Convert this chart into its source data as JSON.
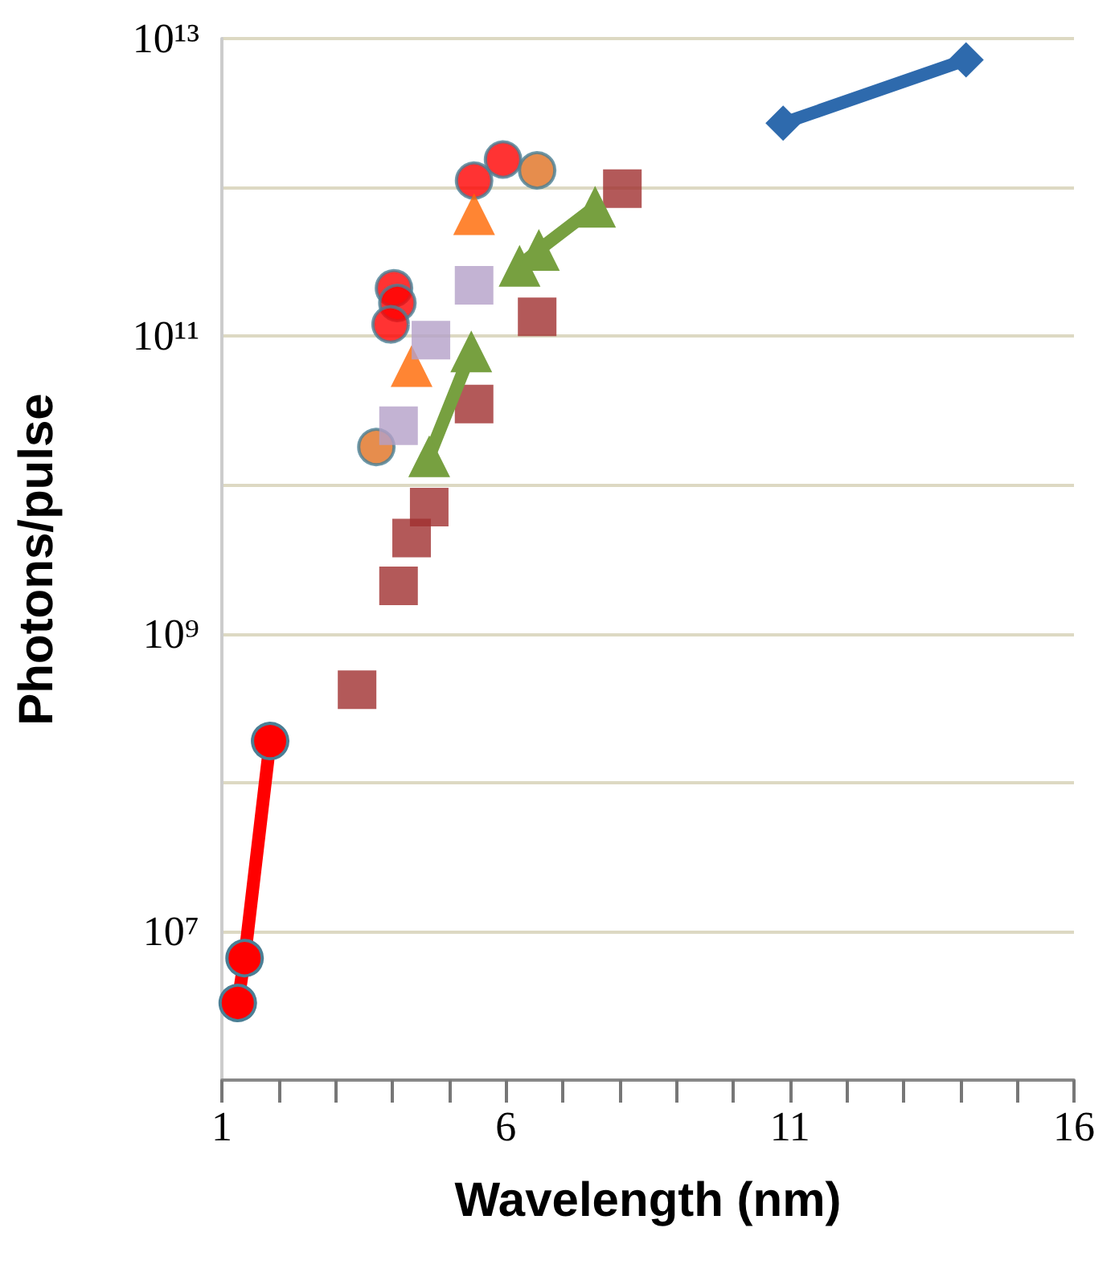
{
  "chart_data": {
    "type": "scatter",
    "xlabel": "Wavelength (nm)",
    "ylabel": "Photons/pulse",
    "log": "y",
    "grid": "y",
    "xlim": [
      1,
      16
    ],
    "xticks": [
      1,
      {
        "value": 2,
        "label": null
      },
      {
        "value": 3,
        "label": null
      },
      {
        "value": 4,
        "label": null
      },
      {
        "value": 5,
        "label": null
      },
      6,
      {
        "value": 7,
        "label": null
      },
      {
        "value": 8,
        "label": null
      },
      {
        "value": 9,
        "label": null
      },
      {
        "value": 10,
        "label": null
      },
      11,
      {
        "value": 12,
        "label": null
      },
      {
        "value": 13,
        "label": null
      },
      {
        "value": 14,
        "label": null
      },
      {
        "value": 15,
        "label": null
      },
      16
    ],
    "ylim": [
      1000000,
      10000000000000
    ],
    "yticks": [
      {
        "value": 1000000,
        "label": null
      },
      {
        "value": 10000000,
        "label": "10⁷"
      },
      {
        "value": 100000000,
        "label": null
      },
      {
        "value": 1000000000,
        "label": "10⁹"
      },
      {
        "value": 10000000000,
        "label": null
      },
      {
        "value": 100000000000,
        "label": "10¹¹"
      },
      {
        "value": 1000000000000,
        "label": null
      },
      {
        "value": 10000000000000,
        "label": "10¹³"
      }
    ],
    "series": [
      {
        "type": "line",
        "marker": "circle",
        "color": "#ff0000",
        "x": [
          1.28,
          1.4,
          1.85
        ],
        "values": [
          3300000,
          6600000,
          190000000
        ]
      },
      {
        "type": "scatter",
        "marker": "circle",
        "color": "#ff0000",
        "x": [
          4.03,
          4.09,
          3.97,
          5.44,
          5.95
        ],
        "values": [
          210000000000,
          167000000000,
          120000000000,
          1110000000000,
          1540000000000
        ]
      },
      {
        "type": "scatter",
        "marker": "circle",
        "color": "#e07020",
        "x": [
          3.72,
          6.55
        ],
        "values": [
          18000000000,
          1300000000000
        ]
      },
      {
        "type": "scatter",
        "marker": "triangle",
        "color": "#ff6600",
        "x": [
          5.44,
          4.34
        ],
        "values": [
          660000000000,
          63000000000
        ]
      },
      {
        "type": "scatter",
        "marker": "square",
        "color": "#b4a0c8",
        "x": [
          5.44,
          4.68,
          4.11
        ],
        "values": [
          220000000000,
          94000000000,
          25000000000
        ]
      },
      {
        "type": "line",
        "marker": "triangle",
        "color": "#77a040",
        "x": [
          4.65,
          5.39
        ],
        "values": [
          15600000000,
          79000000000
        ]
      },
      {
        "type": "line",
        "marker": "triangle",
        "color": "#77a040",
        "x": [
          6.24,
          6.58,
          7.57
        ],
        "values": [
          297000000000,
          380000000000,
          740000000000
        ]
      },
      {
        "type": "scatter",
        "marker": "square",
        "color": "#a03030",
        "x": [
          8.05,
          6.55,
          5.44,
          4.65,
          4.34,
          4.11,
          3.38
        ],
        "values": [
          980000000000,
          135000000000,
          35000000000,
          7100000000,
          4400000000,
          2100000000,
          420000000
        ]
      },
      {
        "type": "line",
        "marker": "diamond",
        "color": "#2e6aad",
        "x": [
          10.88,
          14.1
        ],
        "values": [
          2700000000000,
          7200000000000
        ]
      }
    ]
  }
}
